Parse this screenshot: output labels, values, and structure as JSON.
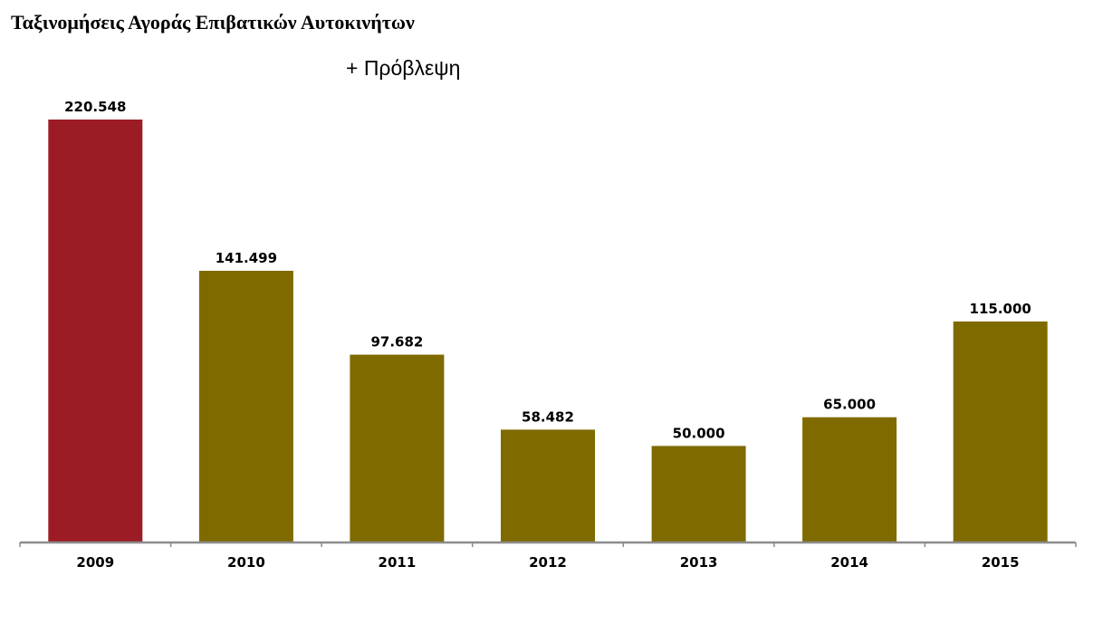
{
  "title": "Ταξινομήσεις Αγοράς Επιβατικών Αυτοκινήτων",
  "subtitle": "+ Πρόβλεψη",
  "colors": {
    "highlight": "#9c1c26",
    "default": "#7f6a00",
    "axis": "#8c8c8c"
  },
  "chart_data": {
    "type": "bar",
    "title": "Ταξινομήσεις Αγοράς Επιβατικών Αυτοκινήτων",
    "subtitle": "+ Πρόβλεψη",
    "categories": [
      "2009",
      "2010",
      "2011",
      "2012",
      "2013",
      "2014",
      "2015"
    ],
    "values": [
      220548,
      141499,
      97682,
      58482,
      50000,
      65000,
      115000
    ],
    "value_labels": [
      "220.548",
      "141.499",
      "97.682",
      "58.482",
      "50.000",
      "65.000",
      "115.000"
    ],
    "bar_colors": [
      "#9c1c26",
      "#7f6a00",
      "#7f6a00",
      "#7f6a00",
      "#7f6a00",
      "#7f6a00",
      "#7f6a00"
    ],
    "xlabel": "",
    "ylabel": "",
    "ylim": [
      0,
      220548
    ],
    "grid": false,
    "legend": "none"
  }
}
